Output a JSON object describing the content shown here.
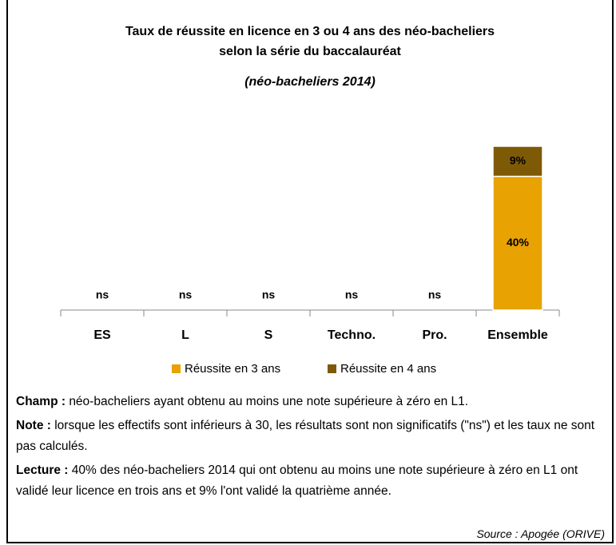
{
  "chart_data": {
    "type": "stacked_bar",
    "title": [
      "Taux de réussite en licence en 3 ou 4 ans des néo-bacheliers",
      "selon la série du baccalauréat"
    ],
    "subtitle": "(néo-bacheliers 2014)",
    "categories": [
      "ES",
      "L",
      "S",
      "Techno.",
      "Pro.",
      "Ensemble"
    ],
    "series": [
      {
        "name": "Réussite en 3 ans",
        "color": "#e8a202",
        "values": [
          null,
          null,
          null,
          null,
          null,
          40
        ],
        "value_labels": [
          "ns",
          "ns",
          "ns",
          "ns",
          "ns",
          "40%"
        ]
      },
      {
        "name": "Réussite en 4 ans",
        "color": "#7f5a06",
        "values": [
          null,
          null,
          null,
          null,
          null,
          9
        ],
        "value_labels": [
          null,
          null,
          null,
          null,
          null,
          "9%"
        ]
      }
    ],
    "legend": "bottom"
  },
  "notes": [
    {
      "label": "Champ :",
      "text": "néo-bacheliers ayant obtenu au moins une note supérieure à zéro en L1."
    },
    {
      "label": "Note :",
      "text": "lorsque les effectifs sont inférieurs à 30, les résultats sont non significatifs (\"ns\") et les taux ne sont pas calculés."
    },
    {
      "label": "Lecture :",
      "text": "40% des néo-bacheliers 2014 qui ont obtenu au moins une note supérieure à zéro en L1 ont validé leur licence en trois ans et 9% l'ont validé la quatrième année."
    }
  ],
  "source": "Source : Apogée (ORIVE)"
}
